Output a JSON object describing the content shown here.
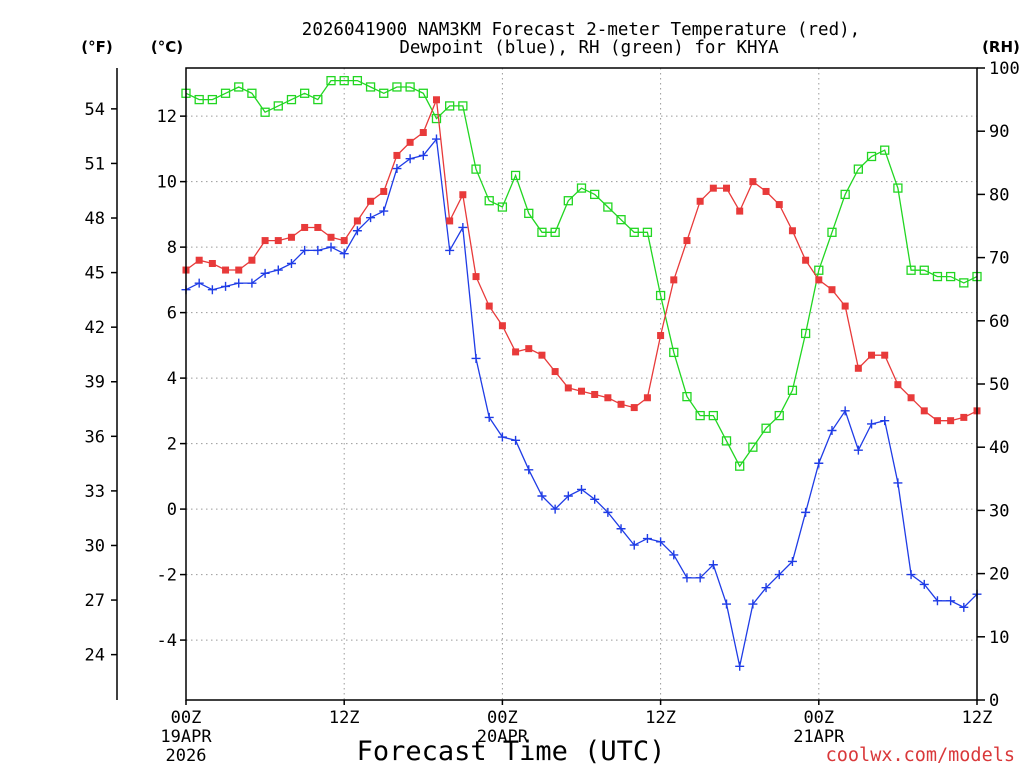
{
  "watermark": "coolwx.com/models",
  "colors": {
    "watermark": "#d9383a"
  },
  "chart_data": {
    "type": "line",
    "title": [
      "2026041900 NAM3KM Forecast 2-meter Temperature (red),",
      "Dewpoint (blue), RH (green) for KHYA"
    ],
    "xlabel": "Forecast Time (UTC)",
    "x_range": [
      0,
      60
    ],
    "x": [
      0,
      1,
      2,
      3,
      4,
      5,
      6,
      7,
      8,
      9,
      10,
      11,
      12,
      13,
      14,
      15,
      16,
      17,
      18,
      19,
      20,
      21,
      22,
      23,
      24,
      25,
      26,
      27,
      28,
      29,
      30,
      31,
      32,
      33,
      34,
      35,
      36,
      37,
      38,
      39,
      40,
      41,
      42,
      43,
      44,
      45,
      46,
      47,
      48,
      49,
      50,
      51,
      52,
      53,
      54,
      55,
      56,
      57,
      58,
      59,
      60
    ],
    "x_ticks": [
      {
        "hour": 0,
        "labels": [
          "00Z",
          "19APR",
          "2026"
        ]
      },
      {
        "hour": 12,
        "labels": [
          "12Z"
        ]
      },
      {
        "hour": 24,
        "labels": [
          "00Z",
          "20APR"
        ]
      },
      {
        "hour": 36,
        "labels": [
          "12Z"
        ]
      },
      {
        "hour": 48,
        "labels": [
          "00Z",
          "21APR"
        ]
      },
      {
        "hour": 60,
        "labels": [
          "12Z"
        ]
      }
    ],
    "axes": {
      "celsius": {
        "unit_label": "(°C)",
        "range": [
          -5.83,
          13.47
        ],
        "ticks": [
          12,
          10,
          8,
          6,
          4,
          2,
          0,
          -2,
          -4
        ]
      },
      "fahrenheit": {
        "unit_label": "(°F)",
        "ticks": [
          54,
          51,
          48,
          45,
          42,
          39,
          36,
          33,
          30,
          27,
          24
        ]
      },
      "rh": {
        "unit_label": "(RH)",
        "range": [
          0,
          100
        ],
        "ticks": [
          100,
          90,
          80,
          70,
          60,
          50,
          40,
          30,
          20,
          10,
          0
        ]
      }
    },
    "grid": true,
    "series": [
      {
        "name": "2-meter Temperature",
        "color": "#e83a3a",
        "marker": "filled-square-icon",
        "secondary_axis": false,
        "values": [
          7.3,
          7.6,
          7.5,
          7.3,
          7.3,
          7.6,
          8.2,
          8.2,
          8.3,
          8.6,
          8.6,
          8.3,
          8.2,
          8.8,
          9.4,
          9.7,
          10.8,
          11.2,
          11.5,
          12.5,
          8.8,
          9.6,
          7.1,
          6.2,
          5.6,
          4.8,
          4.9,
          4.7,
          4.2,
          3.7,
          3.6,
          3.5,
          3.4,
          3.2,
          3.1,
          3.4,
          5.3,
          7.0,
          8.2,
          9.4,
          9.8,
          9.8,
          9.1,
          10.0,
          9.7,
          9.3,
          8.5,
          7.6,
          7.0,
          6.7,
          6.2,
          4.3,
          4.7,
          4.7,
          3.8,
          3.4,
          3.0,
          2.7,
          2.7,
          2.8,
          3.0
        ]
      },
      {
        "name": "Dewpoint",
        "color": "#1f3ce6",
        "marker": "plus-icon",
        "secondary_axis": false,
        "values": [
          6.7,
          6.9,
          6.7,
          6.8,
          6.9,
          6.9,
          7.2,
          7.3,
          7.5,
          7.9,
          7.9,
          8.0,
          7.8,
          8.5,
          8.9,
          9.1,
          10.4,
          10.7,
          10.8,
          11.3,
          7.9,
          8.6,
          4.6,
          2.8,
          2.2,
          2.1,
          1.2,
          0.4,
          0.0,
          0.4,
          0.6,
          0.3,
          -0.1,
          -0.6,
          -1.1,
          -0.9,
          -1.0,
          -1.4,
          -2.1,
          -2.1,
          -1.7,
          -2.9,
          -4.8,
          -2.9,
          -2.4,
          -2.0,
          -1.6,
          -0.1,
          1.4,
          2.4,
          3.0,
          1.8,
          2.6,
          2.7,
          0.8,
          -2.0,
          -2.3,
          -2.8,
          -2.8,
          -3.0,
          -2.6
        ]
      },
      {
        "name": "RH",
        "color": "#22d622",
        "marker": "open-square-icon",
        "secondary_axis": true,
        "values": [
          96,
          95,
          95,
          96,
          97,
          96,
          93,
          94,
          95,
          96,
          95,
          98,
          98,
          98,
          97,
          96,
          97,
          97,
          96,
          92,
          94,
          94,
          84,
          79,
          78,
          83,
          77,
          74,
          74,
          79,
          81,
          80,
          78,
          76,
          74,
          74,
          64,
          55,
          48,
          45,
          45,
          41,
          37,
          40,
          43,
          45,
          49,
          58,
          68,
          74,
          80,
          84,
          86,
          87,
          81,
          68,
          68,
          67,
          67,
          66,
          67
        ]
      }
    ]
  }
}
